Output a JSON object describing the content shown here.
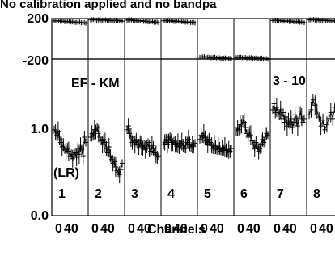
{
  "chart_data": {
    "type": "scatter",
    "title": "No calibration applied and no bandpa",
    "xlabel": "Channels",
    "baseline": "EF - KM",
    "polarization": "(LR)",
    "source": "3 - 10",
    "x_tick_labels": [
      "0",
      "40"
    ],
    "phase_panel": {
      "ylim": [
        -200,
        200
      ],
      "tick_labels": [
        "200",
        "-200"
      ]
    },
    "amp_panel": {
      "ylim": [
        0.0,
        2.1
      ],
      "tick_labels": [
        "1.0",
        "0.0"
      ]
    },
    "ifs": [
      {
        "label": "1",
        "phase_start": 180,
        "phase_end": 158,
        "amp": [
          1.15,
          1.12,
          1.08,
          1.13,
          1.05,
          0.98,
          0.92,
          0.95,
          0.88,
          0.84,
          0.9,
          0.86,
          0.8,
          0.82,
          0.76,
          0.8,
          0.85,
          0.78,
          0.9,
          0.82,
          0.95,
          0.88,
          0.8,
          1.05,
          0.98
        ]
      },
      {
        "label": "2",
        "phase_start": 190,
        "phase_end": 178,
        "amp": [
          1.05,
          1.1,
          1.08,
          1.15,
          1.12,
          1.18,
          1.1,
          1.05,
          1.0,
          0.95,
          1.02,
          0.98,
          0.9,
          0.85,
          0.92,
          0.8,
          0.75,
          0.7,
          0.72,
          0.65,
          0.6,
          0.58,
          0.55,
          0.62,
          0.7
        ]
      },
      {
        "label": "3",
        "phase_start": 188,
        "phase_end": 162,
        "amp": [
          1.15,
          1.2,
          1.1,
          1.05,
          0.98,
          1.0,
          0.95,
          1.02,
          0.96,
          0.92,
          1.0,
          0.94,
          0.9,
          0.95,
          0.88,
          0.92,
          0.98,
          0.9,
          0.86,
          0.94,
          0.9,
          0.85,
          0.82,
          0.78,
          0.8
        ]
      },
      {
        "label": "4",
        "phase_start": 182,
        "phase_end": 160,
        "amp": [
          0.95,
          0.98,
          1.02,
          0.96,
          1.0,
          1.05,
          0.98,
          0.95,
          1.0,
          0.96,
          0.93,
          0.97,
          0.92,
          0.95,
          0.99,
          0.94,
          0.9,
          0.95,
          0.98,
          1.02,
          0.96,
          0.92,
          0.95,
          0.93,
          0.97
        ]
      },
      {
        "label": "5",
        "phase_start": -178,
        "phase_end": -196,
        "amp": [
          1.02,
          1.08,
          1.05,
          1.1,
          1.04,
          1.0,
          0.96,
          1.02,
          0.98,
          0.94,
          0.9,
          0.95,
          0.92,
          0.88,
          0.93,
          0.9,
          0.86,
          0.91,
          0.88,
          0.92,
          0.87,
          0.84,
          0.88,
          0.86,
          0.9
        ]
      },
      {
        "label": "6",
        "phase_start": -182,
        "phase_end": -198,
        "amp": [
          1.12,
          1.18,
          1.15,
          1.22,
          1.2,
          1.28,
          1.25,
          1.18,
          1.1,
          1.05,
          1.12,
          1.08,
          1.0,
          0.95,
          0.9,
          0.98,
          0.92,
          0.86,
          0.9,
          0.96,
          1.02,
          0.98,
          1.05,
          1.1,
          1.08
        ]
      },
      {
        "label": "7",
        "phase_start": 185,
        "phase_end": 163,
        "amp": [
          1.42,
          1.5,
          1.38,
          1.45,
          1.4,
          1.35,
          1.42,
          1.3,
          1.38,
          1.25,
          1.32,
          1.2,
          1.28,
          1.22,
          1.3,
          1.18,
          1.25,
          1.35,
          1.28,
          1.2,
          1.3,
          1.4,
          1.32,
          1.25,
          1.3
        ]
      },
      {
        "label": "8",
        "phase_start": 190,
        "phase_end": 174,
        "amp": [
          1.35,
          1.42,
          1.55,
          1.48,
          1.4,
          1.32,
          1.2,
          1.28,
          1.15,
          1.22,
          1.3,
          1.38,
          1.3,
          1.45,
          1.38,
          1.5,
          1.4
        ]
      }
    ]
  }
}
